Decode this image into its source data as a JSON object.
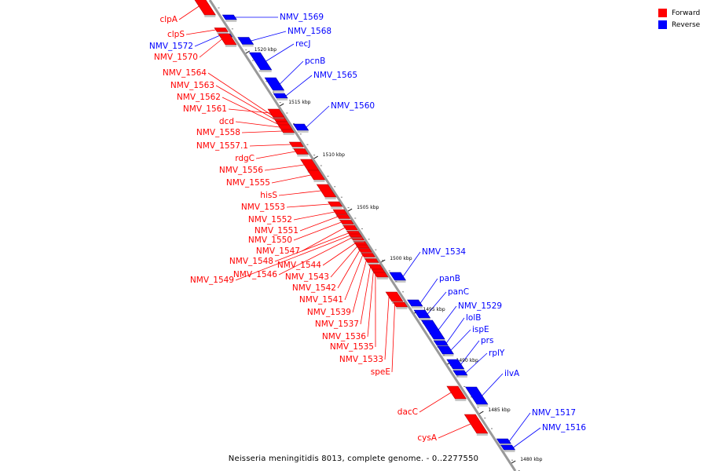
{
  "legend": {
    "items": [
      {
        "label": "Forward",
        "color": "#ff0000"
      },
      {
        "label": "Reverse",
        "color": "#0000ff"
      }
    ]
  },
  "caption": "Neisseria meningitidis 8013, complete genome. - 0..2277550",
  "colors": {
    "forward": "#ff0000",
    "reverse": "#0000ff",
    "axis": "#999999"
  },
  "scale_ticks": [
    "1520 kbp",
    "1515 kbp",
    "1510 kbp",
    "1505 kbp",
    "1500 kbp",
    "1495 kbp",
    "1490 kbp",
    "1485 kbp",
    "1480 kbp"
  ],
  "genes": [
    {
      "name": "clpA",
      "strand": "forward"
    },
    {
      "name": "NMV_1569",
      "strand": "reverse"
    },
    {
      "name": "clpS",
      "strand": "forward"
    },
    {
      "name": "NMV_1568",
      "strand": "reverse"
    },
    {
      "name": "NMV_1572",
      "strand": "reverse"
    },
    {
      "name": "recJ",
      "strand": "reverse"
    },
    {
      "name": "NMV_1570",
      "strand": "forward"
    },
    {
      "name": "pcnB",
      "strand": "reverse"
    },
    {
      "name": "NMV_1564",
      "strand": "forward"
    },
    {
      "name": "NMV_1565",
      "strand": "reverse"
    },
    {
      "name": "NMV_1563",
      "strand": "forward"
    },
    {
      "name": "NMV_1562",
      "strand": "forward"
    },
    {
      "name": "NMV_1560",
      "strand": "reverse"
    },
    {
      "name": "NMV_1561",
      "strand": "forward"
    },
    {
      "name": "dcd",
      "strand": "forward"
    },
    {
      "name": "NMV_1558",
      "strand": "forward"
    },
    {
      "name": "NMV_1557.1",
      "strand": "forward"
    },
    {
      "name": "rdgC",
      "strand": "forward"
    },
    {
      "name": "NMV_1556",
      "strand": "forward"
    },
    {
      "name": "NMV_1555",
      "strand": "forward"
    },
    {
      "name": "hisS",
      "strand": "forward"
    },
    {
      "name": "NMV_1553",
      "strand": "forward"
    },
    {
      "name": "NMV_1552",
      "strand": "forward"
    },
    {
      "name": "NMV_1551",
      "strand": "forward"
    },
    {
      "name": "NMV_1550",
      "strand": "forward"
    },
    {
      "name": "NMV_1547",
      "strand": "forward"
    },
    {
      "name": "NMV_1534",
      "strand": "reverse"
    },
    {
      "name": "NMV_1548",
      "strand": "forward"
    },
    {
      "name": "NMV_1544",
      "strand": "forward"
    },
    {
      "name": "NMV_1546",
      "strand": "forward"
    },
    {
      "name": "NMV_1543",
      "strand": "forward"
    },
    {
      "name": "NMV_1549",
      "strand": "forward"
    },
    {
      "name": "panB",
      "strand": "reverse"
    },
    {
      "name": "NMV_1542",
      "strand": "forward"
    },
    {
      "name": "panC",
      "strand": "reverse"
    },
    {
      "name": "NMV_1541",
      "strand": "forward"
    },
    {
      "name": "NMV_1529",
      "strand": "reverse"
    },
    {
      "name": "NMV_1539",
      "strand": "forward"
    },
    {
      "name": "lolB",
      "strand": "reverse"
    },
    {
      "name": "NMV_1537",
      "strand": "forward"
    },
    {
      "name": "ispE",
      "strand": "reverse"
    },
    {
      "name": "NMV_1536",
      "strand": "forward"
    },
    {
      "name": "prs",
      "strand": "reverse"
    },
    {
      "name": "NMV_1535",
      "strand": "forward"
    },
    {
      "name": "rplY",
      "strand": "reverse"
    },
    {
      "name": "NMV_1533",
      "strand": "forward"
    },
    {
      "name": "speE",
      "strand": "forward"
    },
    {
      "name": "ilvA",
      "strand": "reverse"
    },
    {
      "name": "dacC",
      "strand": "forward"
    },
    {
      "name": "NMV_1517",
      "strand": "reverse"
    },
    {
      "name": "NMV_1516",
      "strand": "reverse"
    },
    {
      "name": "cysA",
      "strand": "forward"
    }
  ]
}
